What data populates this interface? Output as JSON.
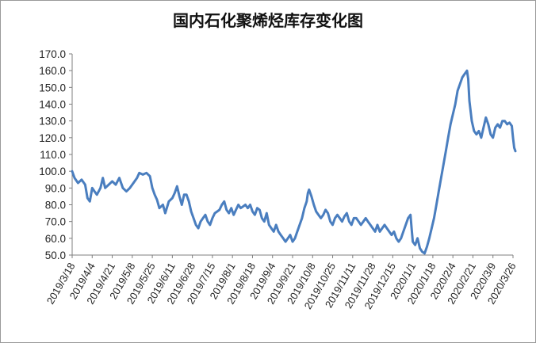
{
  "chart_data": {
    "type": "line",
    "title": "国内石化聚烯烃库存变化图",
    "xlabel": "",
    "ylabel": "",
    "ylim": [
      50,
      170
    ],
    "ytick_labels": [
      "50.0",
      "60.0",
      "70.0",
      "80.0",
      "90.0",
      "100.0",
      "110.0",
      "120.0",
      "130.0",
      "140.0",
      "150.0",
      "160.0",
      "170.0"
    ],
    "xtick_labels": [
      "2019/3/18",
      "2019/4/4",
      "2019/4/21",
      "2019/5/8",
      "2019/5/25",
      "2019/6/11",
      "2019/6/28",
      "2019/7/15",
      "2019/8/1",
      "2019/8/18",
      "2019/9/4",
      "2019/9/21",
      "2019/10/8",
      "2019/10/25",
      "2019/11/11",
      "2019/11/28",
      "2019/12/15",
      "2020/1/1",
      "2020/1/18",
      "2020/2/4",
      "2020/2/21",
      "2020/3/9",
      "2020/3/26"
    ],
    "grid": false,
    "legend": "none",
    "line_color": "#4a7ebf",
    "x_start": "2019/3/18",
    "x_end": "2020/3/26",
    "series": [
      {
        "values": [
          [
            0,
            100
          ],
          [
            2,
            96
          ],
          [
            5,
            93
          ],
          [
            8,
            95
          ],
          [
            11,
            92
          ],
          [
            13,
            84
          ],
          [
            15,
            82
          ],
          [
            17,
            90
          ],
          [
            19,
            88
          ],
          [
            21,
            86
          ],
          [
            24,
            90
          ],
          [
            26,
            96
          ],
          [
            28,
            90
          ],
          [
            31,
            92
          ],
          [
            34,
            94
          ],
          [
            37,
            92
          ],
          [
            40,
            96
          ],
          [
            43,
            90
          ],
          [
            46,
            88
          ],
          [
            49,
            90
          ],
          [
            52,
            93
          ],
          [
            55,
            96
          ],
          [
            57,
            99
          ],
          [
            60,
            98
          ],
          [
            63,
            99
          ],
          [
            66,
            97
          ],
          [
            68,
            90
          ],
          [
            70,
            86
          ],
          [
            72,
            83
          ],
          [
            74,
            78
          ],
          [
            77,
            80
          ],
          [
            79,
            75
          ],
          [
            82,
            82
          ],
          [
            85,
            84
          ],
          [
            87,
            87
          ],
          [
            89,
            91
          ],
          [
            91,
            85
          ],
          [
            93,
            80
          ],
          [
            95,
            86
          ],
          [
            97,
            86
          ],
          [
            99,
            82
          ],
          [
            101,
            76
          ],
          [
            103,
            72
          ],
          [
            105,
            68
          ],
          [
            107,
            66
          ],
          [
            109,
            70
          ],
          [
            111,
            72
          ],
          [
            113,
            74
          ],
          [
            115,
            70
          ],
          [
            117,
            68
          ],
          [
            119,
            72
          ],
          [
            121,
            75
          ],
          [
            123,
            76
          ],
          [
            125,
            77
          ],
          [
            127,
            80
          ],
          [
            129,
            82
          ],
          [
            131,
            77
          ],
          [
            133,
            75
          ],
          [
            135,
            78
          ],
          [
            137,
            74
          ],
          [
            139,
            77
          ],
          [
            141,
            80
          ],
          [
            143,
            78
          ],
          [
            145,
            79
          ],
          [
            147,
            80
          ],
          [
            149,
            78
          ],
          [
            151,
            80
          ],
          [
            153,
            76
          ],
          [
            155,
            74
          ],
          [
            157,
            78
          ],
          [
            159,
            77
          ],
          [
            161,
            72
          ],
          [
            163,
            70
          ],
          [
            165,
            75
          ],
          [
            167,
            68
          ],
          [
            169,
            66
          ],
          [
            171,
            64
          ],
          [
            173,
            68
          ],
          [
            175,
            64
          ],
          [
            177,
            62
          ],
          [
            179,
            60
          ],
          [
            181,
            58
          ],
          [
            183,
            60
          ],
          [
            185,
            62
          ],
          [
            187,
            58
          ],
          [
            189,
            60
          ],
          [
            191,
            64
          ],
          [
            193,
            68
          ],
          [
            195,
            72
          ],
          [
            197,
            78
          ],
          [
            199,
            82
          ],
          [
            200,
            87
          ],
          [
            201,
            89
          ],
          [
            203,
            85
          ],
          [
            205,
            80
          ],
          [
            207,
            76
          ],
          [
            209,
            74
          ],
          [
            211,
            72
          ],
          [
            213,
            74
          ],
          [
            215,
            77
          ],
          [
            217,
            75
          ],
          [
            219,
            70
          ],
          [
            221,
            68
          ],
          [
            223,
            72
          ],
          [
            225,
            74
          ],
          [
            227,
            72
          ],
          [
            229,
            70
          ],
          [
            231,
            73
          ],
          [
            233,
            75
          ],
          [
            235,
            70
          ],
          [
            237,
            68
          ],
          [
            239,
            72
          ],
          [
            241,
            72
          ],
          [
            243,
            70
          ],
          [
            245,
            68
          ],
          [
            247,
            70
          ],
          [
            249,
            72
          ],
          [
            251,
            70
          ],
          [
            253,
            68
          ],
          [
            255,
            66
          ],
          [
            257,
            64
          ],
          [
            259,
            68
          ],
          [
            261,
            64
          ],
          [
            263,
            66
          ],
          [
            265,
            68
          ],
          [
            267,
            66
          ],
          [
            269,
            64
          ],
          [
            271,
            62
          ],
          [
            273,
            64
          ],
          [
            275,
            60
          ],
          [
            277,
            58
          ],
          [
            279,
            60
          ],
          [
            281,
            64
          ],
          [
            283,
            68
          ],
          [
            285,
            72
          ],
          [
            287,
            74
          ],
          [
            288,
            66
          ],
          [
            289,
            58
          ],
          [
            291,
            56
          ],
          [
            293,
            60
          ],
          [
            295,
            54
          ],
          [
            297,
            52
          ],
          [
            299,
            51
          ],
          [
            301,
            55
          ],
          [
            303,
            60
          ],
          [
            305,
            66
          ],
          [
            307,
            72
          ],
          [
            309,
            80
          ],
          [
            311,
            88
          ],
          [
            313,
            96
          ],
          [
            315,
            104
          ],
          [
            317,
            112
          ],
          [
            319,
            120
          ],
          [
            321,
            128
          ],
          [
            323,
            134
          ],
          [
            325,
            140
          ],
          [
            327,
            148
          ],
          [
            329,
            152
          ],
          [
            331,
            156
          ],
          [
            333,
            158
          ],
          [
            335,
            160
          ],
          [
            336,
            155
          ],
          [
            337,
            142
          ],
          [
            339,
            130
          ],
          [
            341,
            124
          ],
          [
            343,
            122
          ],
          [
            345,
            124
          ],
          [
            347,
            120
          ],
          [
            349,
            126
          ],
          [
            351,
            132
          ],
          [
            353,
            128
          ],
          [
            355,
            122
          ],
          [
            357,
            120
          ],
          [
            359,
            126
          ],
          [
            361,
            128
          ],
          [
            363,
            126
          ],
          [
            365,
            130
          ],
          [
            367,
            130
          ],
          [
            369,
            128
          ],
          [
            371,
            129
          ],
          [
            373,
            127
          ],
          [
            374,
            120
          ],
          [
            375,
            114
          ],
          [
            376,
            112
          ]
        ]
      }
    ]
  }
}
